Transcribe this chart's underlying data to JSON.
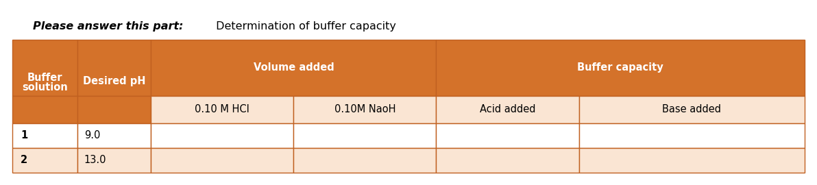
{
  "title_bold": "Please answer this part:",
  "title_normal": " Determination of buffer capacity",
  "orange": "#D4722A",
  "light_peach": "#FAE5D3",
  "white": "#FFFFFF",
  "edge_color": "#C06020",
  "header_text": "#FFFFFF",
  "data_text": "#000000",
  "col1_line1": "Buffer",
  "col1_line2": "solution",
  "col2_header": "Desired pH",
  "group1_header": "Volume added",
  "group2_header": "Buffer capacity",
  "sub_col1": "0.10 M HCl",
  "sub_col2": "0.10M NaoH",
  "sub_col3": "Acid added",
  "sub_col4": "Base added",
  "row1_c1": "1",
  "row1_c2": "9.0",
  "row2_c1": "2",
  "row2_c2": "13.0",
  "fig_width": 11.92,
  "fig_height": 2.7,
  "dpi": 100
}
